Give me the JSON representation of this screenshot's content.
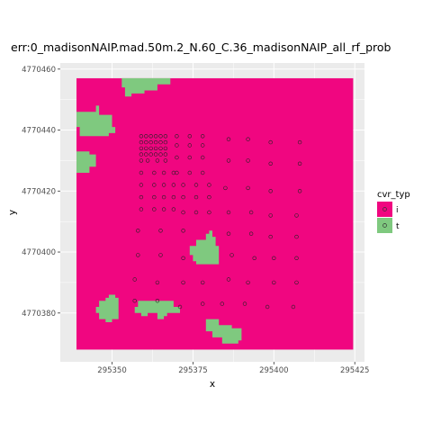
{
  "chart_data": {
    "type": "heatmap",
    "title": "err:0_madisonNAIP.mad.50m.2_N.60_C.36_madisonNAIP_all_rf_prob",
    "xlabel": "x",
    "ylabel": "y",
    "xlim": [
      295334,
      295428
    ],
    "ylim": [
      4770364,
      4770462
    ],
    "x_ticks": [
      "295350",
      "295375",
      "295400",
      "295425"
    ],
    "x_tick_values": [
      295350,
      295375,
      295400,
      295425
    ],
    "y_ticks": [
      "4770380",
      "4770400",
      "4770420",
      "4770440",
      "4770460"
    ],
    "y_tick_values": [
      4770380,
      4770400,
      4770420,
      4770440,
      4770460
    ],
    "raster_extent": {
      "xmin": 295339,
      "xmax": 295424.5,
      "ymin": 4770368,
      "ymax": 4770457
    },
    "background_class": "i",
    "t_class_patches": [
      {
        "polygon": [
          [
            295353,
            4770457
          ],
          [
            295368,
            4770457
          ],
          [
            295368,
            4770455
          ],
          [
            295364,
            4770455
          ],
          [
            295364,
            4770453
          ],
          [
            295360,
            4770453
          ],
          [
            295360,
            4770452
          ],
          [
            295356,
            4770452
          ],
          [
            295356,
            4770451
          ],
          [
            295354,
            4770451
          ],
          [
            295354,
            4770454
          ],
          [
            295353,
            4770454
          ]
        ]
      },
      {
        "polygon": [
          [
            295339,
            4770446
          ],
          [
            295345,
            4770446
          ],
          [
            295345,
            4770448
          ],
          [
            295346,
            4770448
          ],
          [
            295346,
            4770445
          ],
          [
            295350,
            4770445
          ],
          [
            295350,
            4770441
          ],
          [
            295351,
            4770441
          ],
          [
            295351,
            4770439
          ],
          [
            295349,
            4770439
          ],
          [
            295349,
            4770438
          ],
          [
            295340,
            4770438
          ],
          [
            295340,
            4770441
          ],
          [
            295339,
            4770441
          ]
        ]
      },
      {
        "polygon": [
          [
            295339,
            4770433
          ],
          [
            295343,
            4770433
          ],
          [
            295343,
            4770432
          ],
          [
            295345,
            4770432
          ],
          [
            295345,
            4770428
          ],
          [
            295343,
            4770428
          ],
          [
            295343,
            4770426
          ],
          [
            295339,
            4770426
          ]
        ]
      },
      {
        "polygon": [
          [
            295383,
            4770396
          ],
          [
            295376,
            4770396
          ],
          [
            295376,
            4770397
          ],
          [
            295375,
            4770397
          ],
          [
            295375,
            4770399
          ],
          [
            295374,
            4770399
          ],
          [
            295374,
            4770402
          ],
          [
            295376,
            4770402
          ],
          [
            295376,
            4770404
          ],
          [
            295379,
            4770404
          ],
          [
            295379,
            4770406
          ],
          [
            295380,
            4770406
          ],
          [
            295380,
            4770407
          ],
          [
            295381,
            4770407
          ],
          [
            295381,
            4770405
          ],
          [
            295382,
            4770405
          ],
          [
            295382,
            4770402
          ],
          [
            295383,
            4770402
          ]
        ]
      },
      {
        "polygon": [
          [
            295348,
            4770385
          ],
          [
            295349,
            4770385
          ],
          [
            295349,
            4770386
          ],
          [
            295351,
            4770386
          ],
          [
            295351,
            4770385
          ],
          [
            295352,
            4770385
          ],
          [
            295352,
            4770378
          ],
          [
            295350,
            4770378
          ],
          [
            295350,
            4770377
          ],
          [
            295348,
            4770377
          ],
          [
            295348,
            4770378
          ],
          [
            295346,
            4770378
          ],
          [
            295346,
            4770380
          ],
          [
            295345,
            4770380
          ],
          [
            295345,
            4770382
          ],
          [
            295346,
            4770382
          ],
          [
            295346,
            4770384
          ],
          [
            295348,
            4770384
          ]
        ]
      },
      {
        "polygon": [
          [
            295358,
            4770382
          ],
          [
            295358,
            4770384
          ],
          [
            295369,
            4770384
          ],
          [
            295369,
            4770382
          ],
          [
            295371,
            4770382
          ],
          [
            295371,
            4770380
          ],
          [
            295367,
            4770380
          ],
          [
            295367,
            4770379
          ],
          [
            295366,
            4770379
          ],
          [
            295366,
            4770378
          ],
          [
            295364,
            4770378
          ],
          [
            295364,
            4770380
          ],
          [
            295361,
            4770380
          ],
          [
            295361,
            4770379
          ],
          [
            295359,
            4770379
          ],
          [
            295359,
            4770380
          ],
          [
            295357,
            4770380
          ],
          [
            295357,
            4770382
          ]
        ]
      },
      {
        "polygon": [
          [
            295379,
            4770374
          ],
          [
            295379,
            4770378
          ],
          [
            295383,
            4770378
          ],
          [
            295383,
            4770376
          ],
          [
            295387,
            4770376
          ],
          [
            295387,
            4770375
          ],
          [
            295390,
            4770375
          ],
          [
            295390,
            4770371
          ],
          [
            295389,
            4770371
          ],
          [
            295389,
            4770370
          ],
          [
            295384,
            4770370
          ],
          [
            295384,
            4770372
          ],
          [
            295381,
            4770372
          ],
          [
            295381,
            4770374
          ]
        ]
      }
    ],
    "series": [
      {
        "name": "i",
        "marker": "circle-open",
        "points": [
          [
            295359,
            4770438
          ],
          [
            295360.5,
            4770438
          ],
          [
            295362,
            4770438
          ],
          [
            295363.5,
            4770438
          ],
          [
            295365,
            4770438
          ],
          [
            295366.5,
            4770438
          ],
          [
            295359,
            4770436
          ],
          [
            295360.5,
            4770436
          ],
          [
            295362,
            4770436
          ],
          [
            295363.5,
            4770436
          ],
          [
            295365,
            4770436
          ],
          [
            295366.5,
            4770436
          ],
          [
            295359,
            4770434
          ],
          [
            295360.5,
            4770434
          ],
          [
            295362,
            4770434
          ],
          [
            295363.5,
            4770434
          ],
          [
            295365,
            4770434
          ],
          [
            295366.5,
            4770434
          ],
          [
            295359,
            4770432
          ],
          [
            295360.5,
            4770432
          ],
          [
            295362,
            4770432
          ],
          [
            295363.5,
            4770432
          ],
          [
            295365,
            4770432
          ],
          [
            295366.5,
            4770432
          ],
          [
            295359,
            4770430
          ],
          [
            295361,
            4770430
          ],
          [
            295364,
            4770430
          ],
          [
            295366.5,
            4770430
          ],
          [
            295359,
            4770426
          ],
          [
            295363,
            4770426
          ],
          [
            295366,
            4770426
          ],
          [
            295369,
            4770426
          ],
          [
            295359,
            4770422
          ],
          [
            295363,
            4770422
          ],
          [
            295366,
            4770422
          ],
          [
            295369,
            4770422
          ],
          [
            295359,
            4770418
          ],
          [
            295363,
            4770418
          ],
          [
            295366,
            4770418
          ],
          [
            295369,
            4770418
          ],
          [
            295359,
            4770414
          ],
          [
            295363,
            4770414
          ],
          [
            295366,
            4770414
          ],
          [
            295369,
            4770414
          ],
          [
            295370,
            4770438
          ],
          [
            295374,
            4770438
          ],
          [
            295378,
            4770438
          ],
          [
            295370,
            4770435
          ],
          [
            295374,
            4770435
          ],
          [
            295378,
            4770435
          ],
          [
            295370,
            4770431
          ],
          [
            295374,
            4770431
          ],
          [
            295378,
            4770431
          ],
          [
            295370,
            4770426
          ],
          [
            295374,
            4770426
          ],
          [
            295378,
            4770426
          ],
          [
            295372,
            4770422
          ],
          [
            295376,
            4770422
          ],
          [
            295380,
            4770422
          ],
          [
            295372,
            4770418
          ],
          [
            295376,
            4770418
          ],
          [
            295380,
            4770418
          ],
          [
            295372,
            4770413
          ],
          [
            295376,
            4770413
          ],
          [
            295380,
            4770413
          ],
          [
            295386,
            4770437
          ],
          [
            295392,
            4770437
          ],
          [
            295399,
            4770436
          ],
          [
            295408,
            4770436
          ],
          [
            295386,
            4770430
          ],
          [
            295392,
            4770430
          ],
          [
            295399,
            4770429
          ],
          [
            295408,
            4770429
          ],
          [
            295385,
            4770421
          ],
          [
            295392,
            4770421
          ],
          [
            295399,
            4770420
          ],
          [
            295408,
            4770420
          ],
          [
            295386,
            4770413
          ],
          [
            295393,
            4770413
          ],
          [
            295399,
            4770412
          ],
          [
            295407,
            4770412
          ],
          [
            295386,
            4770406
          ],
          [
            295393,
            4770406
          ],
          [
            295399,
            4770405
          ],
          [
            295407,
            4770405
          ],
          [
            295387,
            4770399
          ],
          [
            295394,
            4770398
          ],
          [
            295400,
            4770398
          ],
          [
            295407,
            4770398
          ],
          [
            295386,
            4770391
          ],
          [
            295392,
            4770390
          ],
          [
            295400,
            4770390
          ],
          [
            295407,
            4770390
          ],
          [
            295384,
            4770383
          ],
          [
            295391,
            4770383
          ],
          [
            295398,
            4770382
          ],
          [
            295406,
            4770382
          ],
          [
            295358,
            4770407
          ],
          [
            295365,
            4770407
          ],
          [
            295372,
            4770407
          ],
          [
            295358,
            4770399
          ],
          [
            295365,
            4770399
          ],
          [
            295372,
            4770398
          ],
          [
            295357,
            4770391
          ],
          [
            295364,
            4770390
          ],
          [
            295372,
            4770390
          ],
          [
            295378,
            4770390
          ],
          [
            295357,
            4770384
          ],
          [
            295364,
            4770384
          ],
          [
            295371,
            4770382
          ],
          [
            295378,
            4770383
          ]
        ]
      },
      {
        "name": "t",
        "marker": "circle-open",
        "points": []
      }
    ],
    "colors": {
      "i": "#f00680",
      "t": "#7fc97f",
      "panel": "#ebebeb",
      "grid": "#ffffff",
      "point": "#222222"
    },
    "legend": {
      "title": "cvr_typ",
      "placement": "right",
      "entries": [
        "i",
        "t"
      ]
    },
    "grid": true
  }
}
